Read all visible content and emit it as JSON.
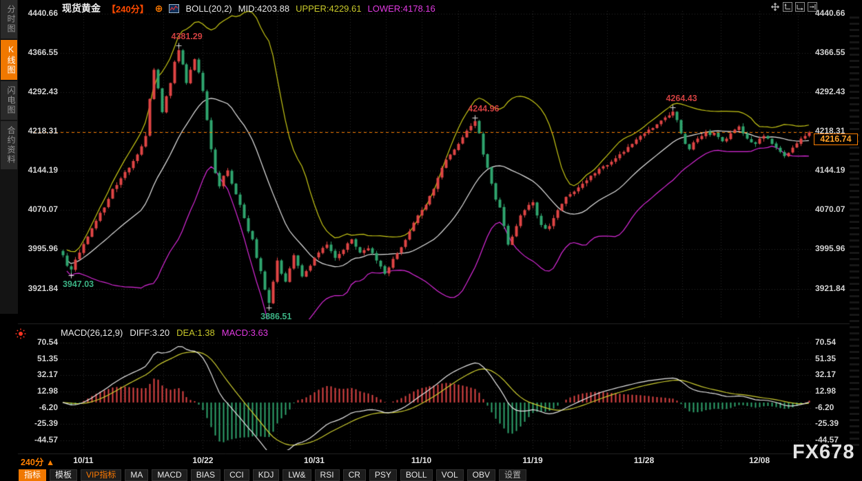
{
  "header": {
    "symbol": "现货黄金",
    "period": "【240分】",
    "add_icon": "⊕",
    "boll_label": "BOLL(20,2)",
    "mid": "MID:4203.88",
    "upper": "UPPER:4229.61",
    "lower": "LOWER:4178.16"
  },
  "corner_icons": [
    "pan-icon",
    "axis-up-icon",
    "axis-right-icon",
    "axis-shift-icon"
  ],
  "sidebar": {
    "items": [
      {
        "label": "分时图",
        "active": false
      },
      {
        "label": "K线图",
        "active": true
      },
      {
        "label": "闪电图",
        "active": false
      },
      {
        "label": "合约资料",
        "active": false
      }
    ]
  },
  "price_axis": {
    "ticks": [
      "4440.66",
      "4366.55",
      "4292.43",
      "4218.31",
      "4144.19",
      "4070.07",
      "3995.96",
      "3921.84"
    ],
    "last_price": "4216.74"
  },
  "macd_panel": {
    "name": "MACD(26,12,9)",
    "diff_label": "DIFF:3.20",
    "dea_label": "DEA:1.38",
    "macd_label": "MACD:3.63",
    "ticks": [
      "70.54",
      "51.35",
      "32.17",
      "12.98",
      "-6.20",
      "-25.39",
      "-44.57"
    ]
  },
  "dates": [
    {
      "label": "10/11",
      "index": 5
    },
    {
      "label": "10/22",
      "index": 34
    },
    {
      "label": "10/31",
      "index": 61
    },
    {
      "label": "11/10",
      "index": 87
    },
    {
      "label": "11/19",
      "index": 114
    },
    {
      "label": "11/28",
      "index": 141
    },
    {
      "label": "12/08",
      "index": 169
    }
  ],
  "footer": {
    "period": "240分",
    "arrow": "▲"
  },
  "toolbar": {
    "buttons": [
      {
        "label": "指标",
        "variant": "active"
      },
      {
        "label": "模板",
        "variant": "normal"
      },
      {
        "label": "VIP指标",
        "variant": "vip"
      },
      {
        "label": "MA",
        "variant": "normal"
      },
      {
        "label": "MACD",
        "variant": "normal"
      },
      {
        "label": "BIAS",
        "variant": "normal"
      },
      {
        "label": "CCI",
        "variant": "normal"
      },
      {
        "label": "KDJ",
        "variant": "normal"
      },
      {
        "label": "LW&",
        "variant": "normal"
      },
      {
        "label": "RSI",
        "variant": "normal"
      },
      {
        "label": "CR",
        "variant": "normal"
      },
      {
        "label": "PSY",
        "variant": "normal"
      },
      {
        "label": "BOLL",
        "variant": "normal"
      },
      {
        "label": "VOL",
        "variant": "normal"
      },
      {
        "label": "OBV",
        "variant": "normal"
      },
      {
        "label": "设置",
        "variant": "muted"
      }
    ]
  },
  "watermark": "FX678",
  "colors": {
    "up": "#e04545",
    "down": "#2fa56e",
    "boll_upper": "#c9c916",
    "boll_mid": "#e8e8e8",
    "boll_lower": "#dd2add",
    "diff_line": "#e8e8e8",
    "dea_line": "#cfcf30",
    "accent": "#f07800",
    "price_line": "#ff8000",
    "grid": "#2e2e2e"
  },
  "chart_data": {
    "type": "candlestick",
    "symbol": "现货黄金",
    "interval": "240分",
    "n_candles": 182,
    "price_range": [
      3864,
      4445
    ],
    "macd_range": [
      -55,
      80
    ],
    "grid": true,
    "legend_position": "top-left",
    "close_waypoints": [
      [
        0,
        3985
      ],
      [
        1,
        3965
      ],
      [
        2,
        3958
      ],
      [
        4,
        3990
      ],
      [
        6,
        4020
      ],
      [
        8,
        4050
      ],
      [
        10,
        4075
      ],
      [
        12,
        4110
      ],
      [
        14,
        4130
      ],
      [
        16,
        4150
      ],
      [
        18,
        4175
      ],
      [
        20,
        4210
      ],
      [
        21,
        4280
      ],
      [
        22,
        4335
      ],
      [
        23,
        4300
      ],
      [
        24,
        4255
      ],
      [
        25,
        4285
      ],
      [
        26,
        4310
      ],
      [
        27,
        4350
      ],
      [
        28,
        4372
      ],
      [
        29,
        4345
      ],
      [
        30,
        4310
      ],
      [
        31,
        4335
      ],
      [
        32,
        4355
      ],
      [
        33,
        4330
      ],
      [
        34,
        4295
      ],
      [
        35,
        4240
      ],
      [
        36,
        4185
      ],
      [
        37,
        4140
      ],
      [
        38,
        4115
      ],
      [
        39,
        4135
      ],
      [
        40,
        4145
      ],
      [
        41,
        4120
      ],
      [
        42,
        4100
      ],
      [
        43,
        4080
      ],
      [
        44,
        4055
      ],
      [
        45,
        4030
      ],
      [
        46,
        4015
      ],
      [
        47,
        3980
      ],
      [
        48,
        3955
      ],
      [
        49,
        3920
      ],
      [
        50,
        3895
      ],
      [
        51,
        3935
      ],
      [
        52,
        3975
      ],
      [
        53,
        3950
      ],
      [
        54,
        3935
      ],
      [
        55,
        3960
      ],
      [
        56,
        3985
      ],
      [
        57,
        3965
      ],
      [
        58,
        3945
      ],
      [
        59,
        3955
      ],
      [
        60,
        3965
      ],
      [
        62,
        3990
      ],
      [
        64,
        4005
      ],
      [
        66,
        3980
      ],
      [
        68,
        3995
      ],
      [
        70,
        4015
      ],
      [
        72,
        3990
      ],
      [
        74,
        3998
      ],
      [
        76,
        3975
      ],
      [
        78,
        3950
      ],
      [
        80,
        3978
      ],
      [
        82,
        4000
      ],
      [
        84,
        4030
      ],
      [
        86,
        4060
      ],
      [
        88,
        4080
      ],
      [
        90,
        4110
      ],
      [
        92,
        4150
      ],
      [
        94,
        4175
      ],
      [
        96,
        4195
      ],
      [
        98,
        4220
      ],
      [
        100,
        4238
      ],
      [
        101,
        4215
      ],
      [
        102,
        4175
      ],
      [
        103,
        4150
      ],
      [
        104,
        4120
      ],
      [
        105,
        4090
      ],
      [
        106,
        4075
      ],
      [
        107,
        4040
      ],
      [
        108,
        4005
      ],
      [
        109,
        4020
      ],
      [
        110,
        4040
      ],
      [
        111,
        4060
      ],
      [
        112,
        4070
      ],
      [
        113,
        4080
      ],
      [
        114,
        4085
      ],
      [
        115,
        4060
      ],
      [
        116,
        4042
      ],
      [
        117,
        4035
      ],
      [
        118,
        4040
      ],
      [
        119,
        4055
      ],
      [
        120,
        4070
      ],
      [
        121,
        4082
      ],
      [
        122,
        4095
      ],
      [
        124,
        4105
      ],
      [
        126,
        4120
      ],
      [
        128,
        4135
      ],
      [
        130,
        4148
      ],
      [
        132,
        4155
      ],
      [
        134,
        4168
      ],
      [
        136,
        4180
      ],
      [
        138,
        4195
      ],
      [
        140,
        4210
      ],
      [
        142,
        4222
      ],
      [
        144,
        4232
      ],
      [
        146,
        4245
      ],
      [
        148,
        4256
      ],
      [
        149,
        4240
      ],
      [
        150,
        4215
      ],
      [
        151,
        4195
      ],
      [
        152,
        4185
      ],
      [
        153,
        4198
      ],
      [
        154,
        4205
      ],
      [
        155,
        4210
      ],
      [
        156,
        4218
      ],
      [
        157,
        4212
      ],
      [
        158,
        4216
      ],
      [
        159,
        4208
      ],
      [
        160,
        4200
      ],
      [
        161,
        4205
      ],
      [
        162,
        4215
      ],
      [
        163,
        4222
      ],
      [
        164,
        4228
      ],
      [
        165,
        4215
      ],
      [
        166,
        4205
      ],
      [
        167,
        4198
      ],
      [
        168,
        4195
      ],
      [
        169,
        4205
      ],
      [
        170,
        4210
      ],
      [
        171,
        4205
      ],
      [
        172,
        4195
      ],
      [
        173,
        4188
      ],
      [
        174,
        4180
      ],
      [
        175,
        4172
      ],
      [
        176,
        4178
      ],
      [
        177,
        4188
      ],
      [
        178,
        4196
      ],
      [
        179,
        4205
      ],
      [
        180,
        4210
      ],
      [
        181,
        4216.74
      ]
    ],
    "markers": [
      {
        "index": 2,
        "kind": "low",
        "price": 3947.03,
        "label": "3947.03",
        "color": "green"
      },
      {
        "index": 28,
        "kind": "high",
        "price": 4381.29,
        "label": "4381.29",
        "color": "red"
      },
      {
        "index": 50,
        "kind": "low",
        "price": 3886.51,
        "label": "3886.51",
        "color": "green"
      },
      {
        "index": 100,
        "kind": "high",
        "price": 4244.96,
        "label": "4244.96",
        "color": "red"
      },
      {
        "index": 148,
        "kind": "high",
        "price": 4264.43,
        "label": "4264.43",
        "color": "red"
      }
    ],
    "last_price": 4216.74,
    "indicators": {
      "bollinger": {
        "window": 20,
        "k": 2,
        "mid": 4203.88,
        "upper": 4229.61,
        "lower": 4178.16
      },
      "macd": {
        "fast": 12,
        "slow": 26,
        "signal": 9,
        "diff": 3.2,
        "dea": 1.38,
        "macd": 3.63
      }
    }
  }
}
